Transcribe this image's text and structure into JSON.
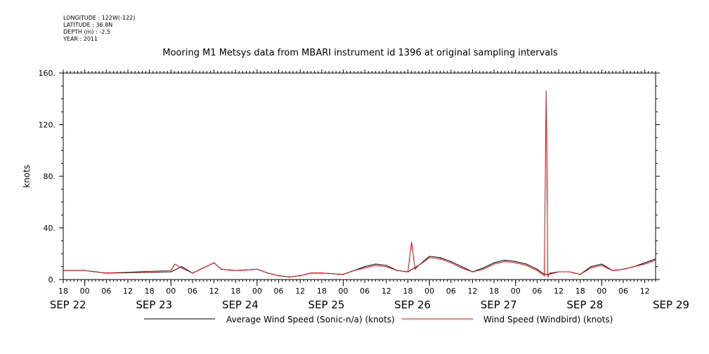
{
  "header": {
    "meta": [
      "LONGITUDE : 122W(-122)",
      "LATITUDE : 36.8N",
      "DEPTH (m) : -2.5",
      "YEAR : 2011"
    ],
    "title": "Mooring M1 Metsys data from MBARI instrument id 1396 at original sampling intervals"
  },
  "chart_data": {
    "type": "line",
    "title": "Mooring M1 Metsys data from MBARI instrument id 1396 at original sampling intervals",
    "xlabel": "",
    "ylabel": "knots",
    "ylim": [
      0,
      160
    ],
    "xlim_hours_label": [
      "SEP 22 18",
      "SEP 29 15"
    ],
    "y_ticks": [
      "0.",
      "40.",
      "80.",
      "120.",
      "160."
    ],
    "x_hour_ticks": [
      "18",
      "00",
      "06",
      "12",
      "18",
      "00",
      "06",
      "12",
      "18",
      "00",
      "06",
      "12",
      "18",
      "00",
      "06",
      "12",
      "18",
      "00",
      "06",
      "12",
      "18",
      "00",
      "06",
      "12",
      "18",
      "00",
      "06",
      "12"
    ],
    "x_day_labels": [
      "SEP 22",
      "SEP 23",
      "SEP 24",
      "SEP 25",
      "SEP 26",
      "SEP 27",
      "SEP 28",
      "SEP 29"
    ],
    "grid": false,
    "legend_position": "bottom",
    "series": [
      {
        "name": "Average Wind Speed (Sonic-n/a) (knots)",
        "color": "#000000",
        "x": [
          "2011-09-22 18:00",
          "2011-09-23 00:00",
          "2011-09-23 03:00",
          "2011-09-23 06:00",
          "2011-09-24 00:00",
          "2011-09-24 03:00",
          "2011-09-24 06:00",
          "2011-09-24 12:00",
          "2011-09-24 14:00",
          "2011-09-24 18:00",
          "2011-09-25 00:00",
          "2011-09-25 03:00",
          "2011-09-25 06:00",
          "2011-09-25 09:00",
          "2011-09-25 12:00",
          "2011-09-25 15:00",
          "2011-09-25 18:00",
          "2011-09-26 00:00",
          "2011-09-26 03:00",
          "2011-09-26 06:00",
          "2011-09-26 09:00",
          "2011-09-26 12:00",
          "2011-09-26 15:00",
          "2011-09-26 18:00",
          "2011-09-26 21:00",
          "2011-09-27 00:00",
          "2011-09-27 03:00",
          "2011-09-27 06:00",
          "2011-09-27 09:00",
          "2011-09-27 12:00",
          "2011-09-27 15:00",
          "2011-09-27 18:00",
          "2011-09-27 21:00",
          "2011-09-28 00:00",
          "2011-09-28 03:00",
          "2011-09-28 06:00",
          "2011-09-28 08:00",
          "2011-09-28 09:00",
          "2011-09-28 12:00",
          "2011-09-28 15:00",
          "2011-09-28 18:00",
          "2011-09-28 21:00",
          "2011-09-29 00:00",
          "2011-09-29 03:00",
          "2011-09-29 06:00",
          "2011-09-29 09:00",
          "2011-09-29 12:00",
          "2011-09-29 15:00"
        ],
        "values": [
          7,
          7,
          6,
          5,
          6,
          10,
          5,
          13,
          8,
          7,
          8,
          5,
          3,
          2,
          3,
          5,
          5,
          4,
          7,
          10,
          12,
          11,
          7,
          6,
          11,
          18,
          17,
          14,
          10,
          6,
          9,
          13,
          15,
          14,
          12,
          8,
          4,
          4,
          6,
          6,
          4,
          10,
          12,
          7,
          8,
          10,
          13,
          16
        ]
      },
      {
        "name": "Wind Speed (Windbird) (knots)",
        "color": "#ff0000",
        "x": [
          "2011-09-22 18:00",
          "2011-09-23 00:00",
          "2011-09-23 03:00",
          "2011-09-23 06:00",
          "2011-09-24 00:00",
          "2011-09-24 01:00",
          "2011-09-24 03:00",
          "2011-09-24 06:00",
          "2011-09-24 12:00",
          "2011-09-24 14:00",
          "2011-09-24 18:00",
          "2011-09-25 00:00",
          "2011-09-25 03:00",
          "2011-09-25 06:00",
          "2011-09-25 09:00",
          "2011-09-25 12:00",
          "2011-09-25 15:00",
          "2011-09-25 18:00",
          "2011-09-26 00:00",
          "2011-09-26 03:00",
          "2011-09-26 06:00",
          "2011-09-26 09:00",
          "2011-09-26 12:00",
          "2011-09-26 15:00",
          "2011-09-26 18:00",
          "2011-09-26 19:00",
          "2011-09-26 20:00",
          "2011-09-26 21:00",
          "2011-09-27 00:00",
          "2011-09-27 03:00",
          "2011-09-27 06:00",
          "2011-09-27 09:00",
          "2011-09-27 12:00",
          "2011-09-27 15:00",
          "2011-09-27 18:00",
          "2011-09-27 21:00",
          "2011-09-28 00:00",
          "2011-09-28 03:00",
          "2011-09-28 06:00",
          "2011-09-28 08:00",
          "2011-09-28 08:30",
          "2011-09-28 09:00",
          "2011-09-28 09:30",
          "2011-09-28 12:00",
          "2011-09-28 15:00",
          "2011-09-28 18:00",
          "2011-09-28 21:00",
          "2011-09-29 00:00",
          "2011-09-29 03:00",
          "2011-09-29 06:00",
          "2011-09-29 09:00",
          "2011-09-29 12:00",
          "2011-09-29 15:00"
        ],
        "values": [
          7,
          7,
          6,
          5,
          7,
          12,
          9,
          5,
          13,
          8,
          7,
          8,
          5,
          3,
          2,
          3,
          5,
          5,
          4,
          7,
          9,
          11,
          10,
          7,
          6,
          29,
          8,
          11,
          17,
          16,
          13,
          9,
          6,
          8,
          12,
          14,
          13,
          11,
          7,
          3,
          146,
          2,
          5,
          6,
          6,
          4,
          9,
          11,
          7,
          8,
          10,
          12,
          15
        ]
      }
    ]
  }
}
